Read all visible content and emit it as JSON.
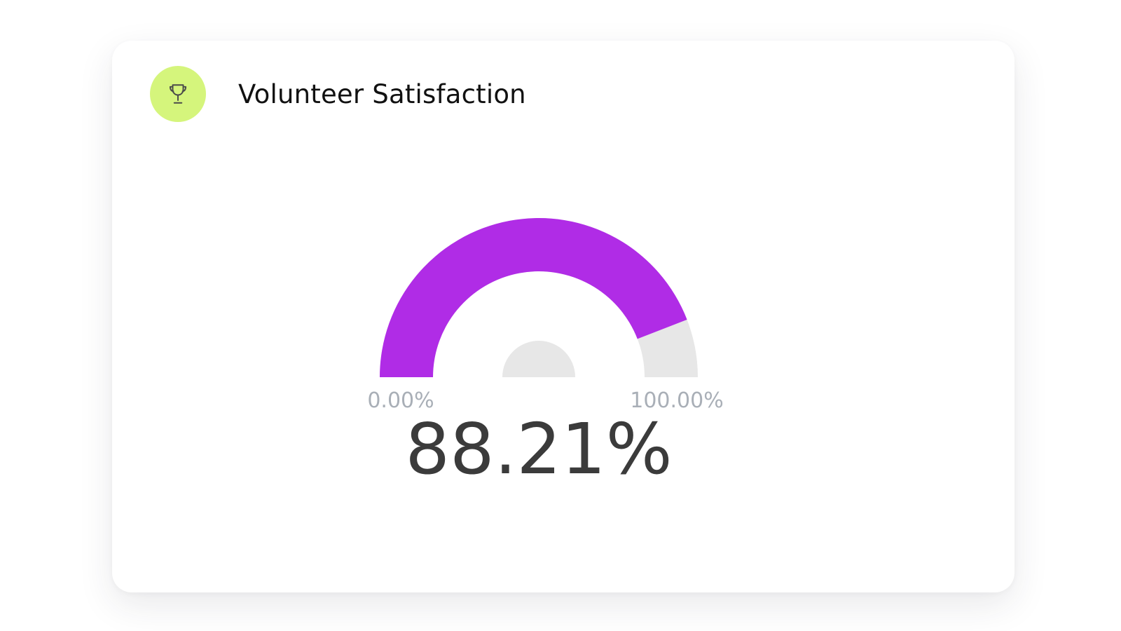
{
  "header": {
    "title": "Volunteer Satisfaction",
    "icon": "trophy-icon",
    "icon_bg_color": "#d5f57c",
    "icon_color": "#4a4a4a"
  },
  "chart_data": {
    "type": "gauge",
    "title": "Volunteer Satisfaction",
    "value": 88.21,
    "min": 0,
    "max": 100,
    "min_label": "0.00%",
    "max_label": "100.00%",
    "value_label": "88.21%",
    "fill_color": "#b02ce6",
    "track_color": "#e7e7e7"
  }
}
